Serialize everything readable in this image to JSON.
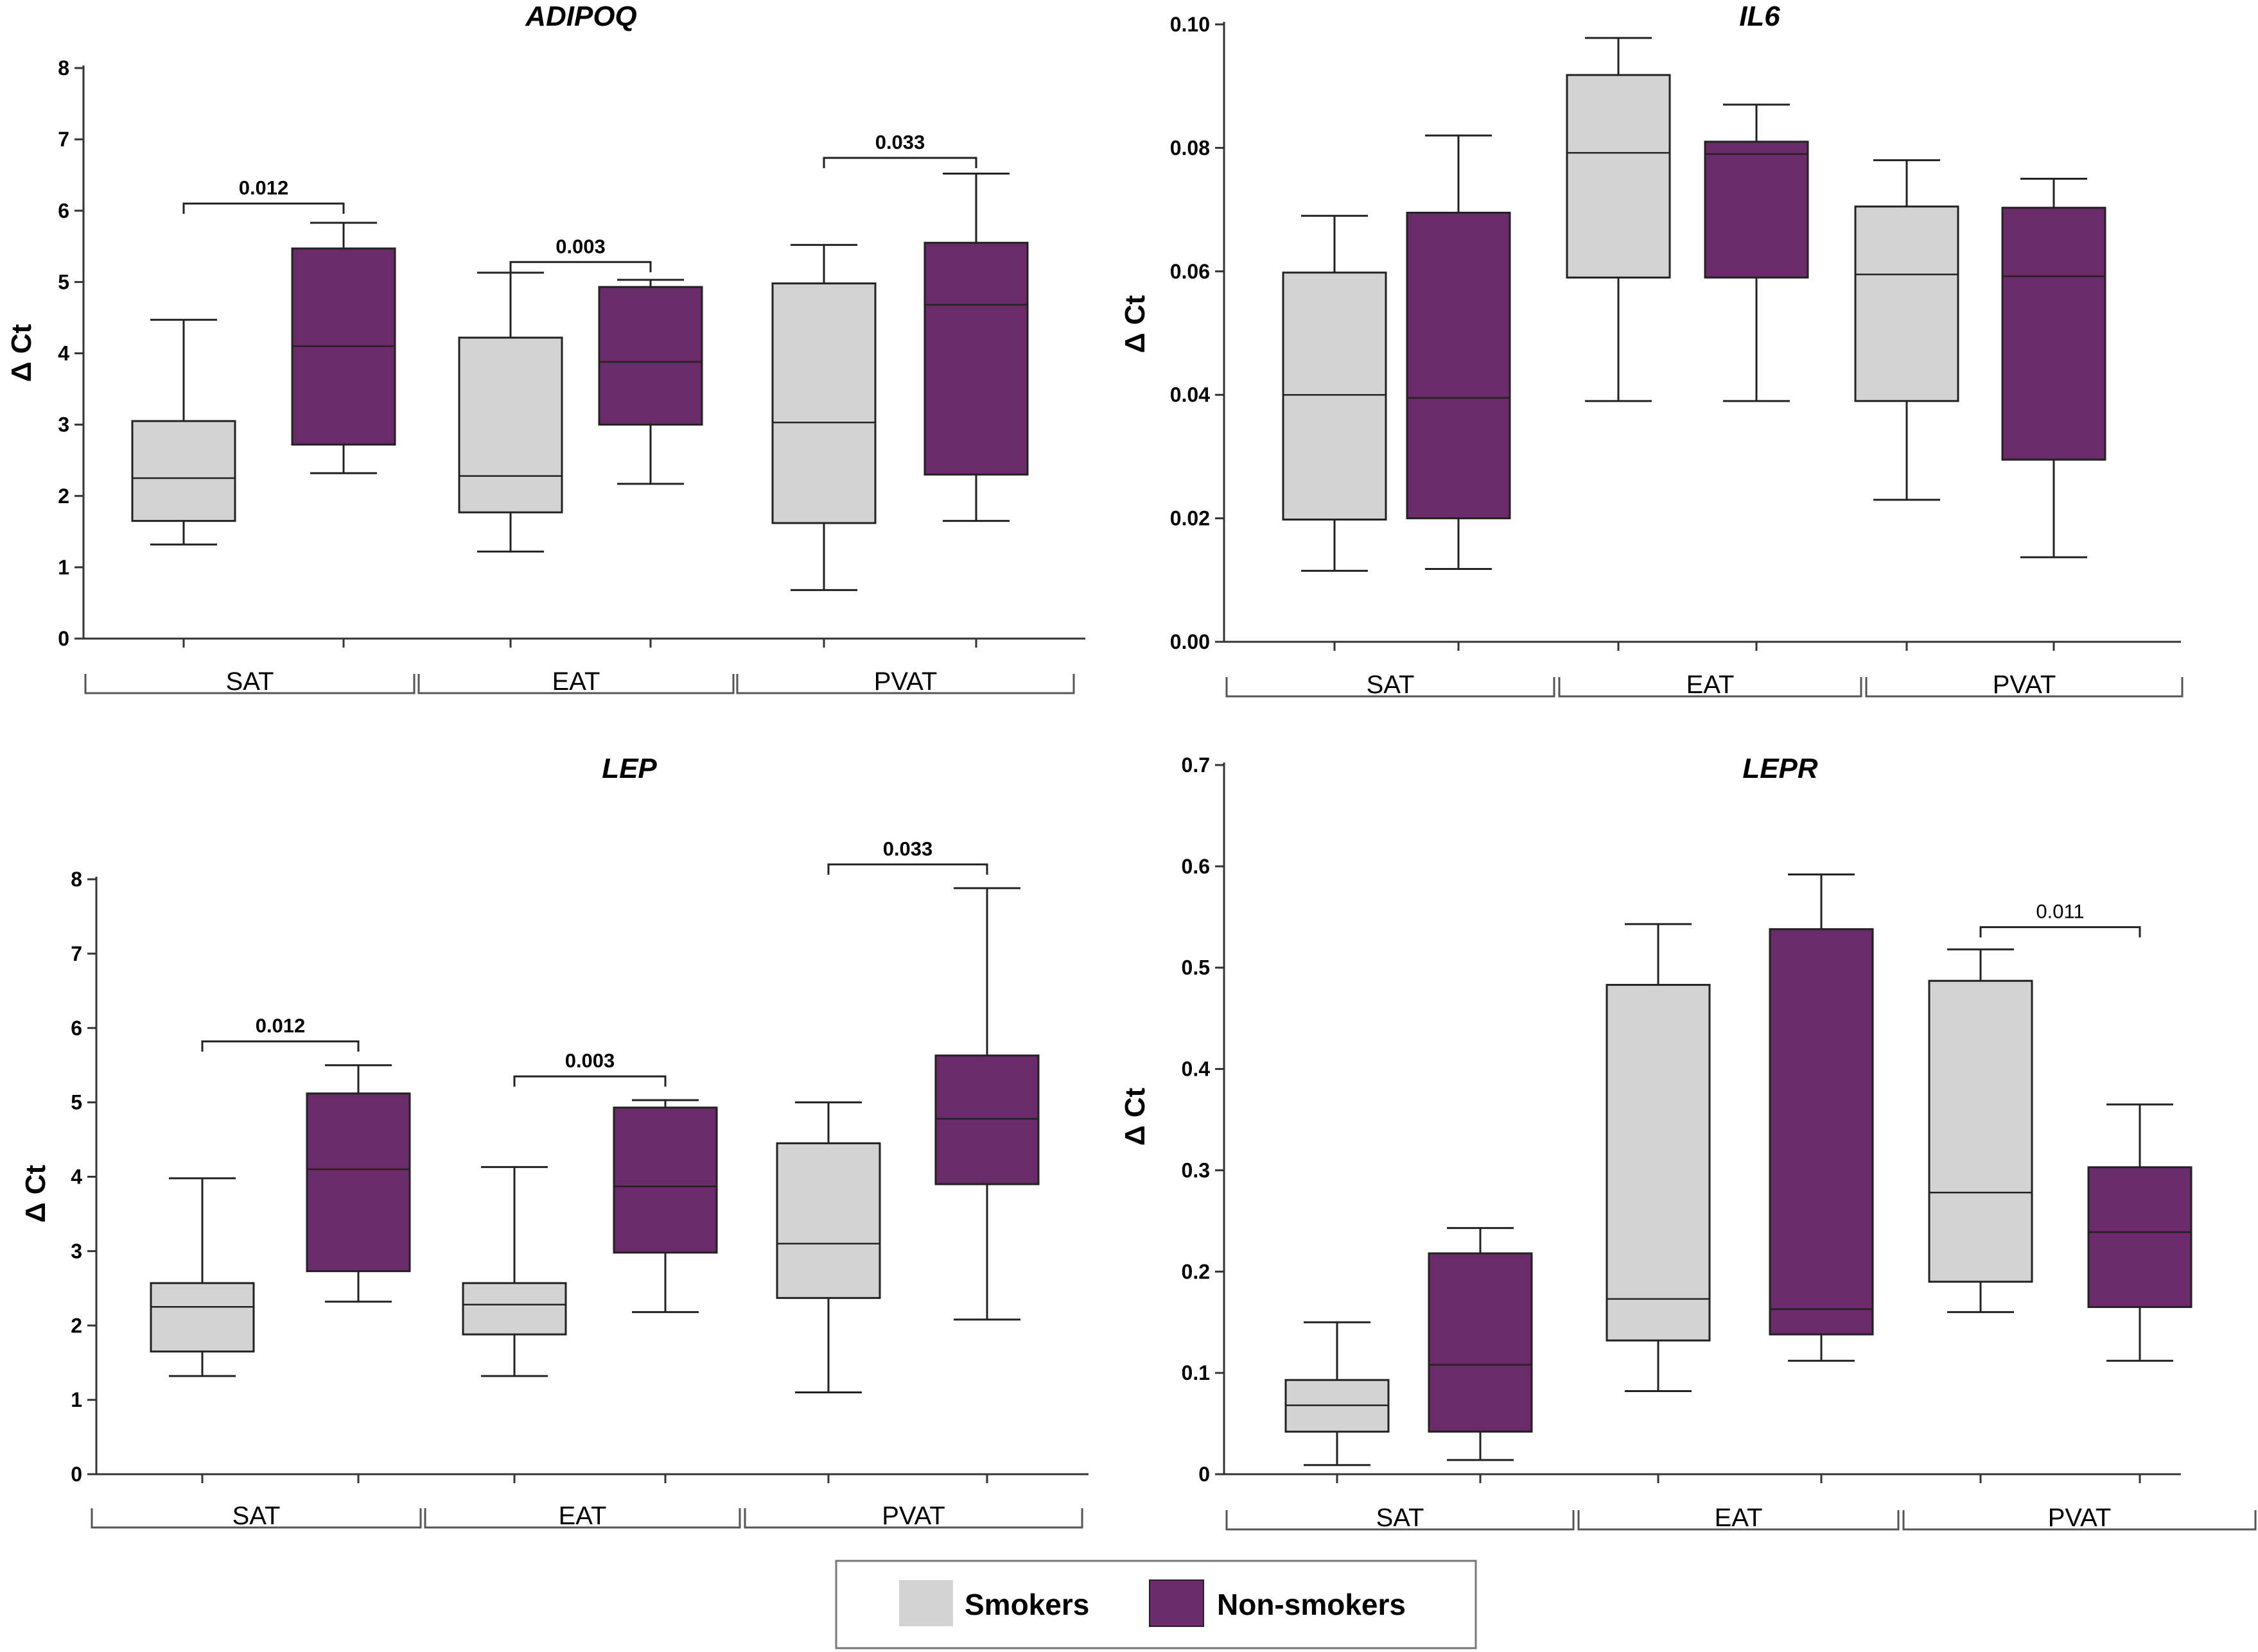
{
  "colors": {
    "smokers": "#d3d3d3",
    "nonsmokers": "#6b2a6a",
    "line": "#222222"
  },
  "legend": {
    "items": [
      {
        "label": "Smokers",
        "series": "smokers"
      },
      {
        "label": "Non-smokers",
        "series": "nonsmokers"
      }
    ]
  },
  "chart_data": [
    {
      "type": "box",
      "title": "ADIPOQ",
      "ylabel": "Δ Ct",
      "ylim": [
        0,
        8
      ],
      "yticks": [
        "0",
        "1",
        "2",
        "3",
        "4",
        "5",
        "6",
        "7",
        "8"
      ],
      "groups": [
        "SAT",
        "EAT",
        "PVAT"
      ],
      "series": [
        {
          "name": "Smokers",
          "boxes": [
            {
              "min": 1.32,
              "q1": 1.65,
              "median": 2.25,
              "q3": 3.05,
              "max": 4.47
            },
            {
              "min": 1.22,
              "q1": 1.77,
              "median": 2.28,
              "q3": 4.22,
              "max": 5.13
            },
            {
              "min": 0.68,
              "q1": 1.62,
              "median": 3.03,
              "q3": 4.98,
              "max": 5.52
            }
          ]
        },
        {
          "name": "Non-smokers",
          "boxes": [
            {
              "min": 2.32,
              "q1": 2.72,
              "median": 4.1,
              "q3": 5.47,
              "max": 5.83
            },
            {
              "min": 2.17,
              "q1": 3.0,
              "median": 3.88,
              "q3": 4.93,
              "max": 5.03
            },
            {
              "min": 1.65,
              "q1": 2.3,
              "median": 4.68,
              "q3": 5.55,
              "max": 6.52
            }
          ]
        }
      ],
      "annotations": [
        {
          "group": 0,
          "text": "0.012",
          "y": 6.1
        },
        {
          "group": 1,
          "text": "0.003",
          "y": 5.28
        },
        {
          "group": 2,
          "text": "0.033",
          "y": 6.74
        }
      ]
    },
    {
      "type": "box",
      "title": "IL6",
      "ylabel": "Δ Ct",
      "ylim": [
        0,
        0.1
      ],
      "yticks": [
        "0.00",
        "0.02",
        "0.04",
        "0.06",
        "0.08",
        "0.10"
      ],
      "groups": [
        "SAT",
        "EAT",
        "PVAT"
      ],
      "series": [
        {
          "name": "Smokers",
          "boxes": [
            {
              "min": 0.0115,
              "q1": 0.0198,
              "median": 0.04,
              "q3": 0.0598,
              "max": 0.069
            },
            {
              "min": 0.039,
              "q1": 0.059,
              "median": 0.0792,
              "q3": 0.0918,
              "max": 0.0978
            },
            {
              "min": 0.023,
              "q1": 0.039,
              "median": 0.0595,
              "q3": 0.0705,
              "max": 0.078
            }
          ]
        },
        {
          "name": "Non-smokers",
          "boxes": [
            {
              "min": 0.0118,
              "q1": 0.02,
              "median": 0.0395,
              "q3": 0.0695,
              "max": 0.082
            },
            {
              "min": 0.039,
              "q1": 0.059,
              "median": 0.079,
              "q3": 0.081,
              "max": 0.087
            },
            {
              "min": 0.0137,
              "q1": 0.0295,
              "median": 0.0592,
              "q3": 0.0703,
              "max": 0.075
            }
          ]
        }
      ],
      "annotations": []
    },
    {
      "type": "box",
      "title": "LEP",
      "ylabel": "Δ Ct",
      "ylim": [
        0,
        8
      ],
      "yticks": [
        "0",
        "1",
        "2",
        "3",
        "4",
        "5",
        "6",
        "7",
        "8"
      ],
      "groups": [
        "SAT",
        "EAT",
        "PVAT"
      ],
      "series": [
        {
          "name": "Smokers",
          "boxes": [
            {
              "min": 1.32,
              "q1": 1.65,
              "median": 2.25,
              "q3": 2.57,
              "max": 3.98
            },
            {
              "min": 1.32,
              "q1": 1.88,
              "median": 2.28,
              "q3": 2.57,
              "max": 4.13
            },
            {
              "min": 1.1,
              "q1": 2.37,
              "median": 3.1,
              "q3": 4.45,
              "max": 5.0
            }
          ]
        },
        {
          "name": "Non-smokers",
          "boxes": [
            {
              "min": 2.32,
              "q1": 2.73,
              "median": 4.1,
              "q3": 5.12,
              "max": 5.5
            },
            {
              "min": 2.18,
              "q1": 2.98,
              "median": 3.87,
              "q3": 4.93,
              "max": 5.03
            },
            {
              "min": 2.08,
              "q1": 3.9,
              "median": 4.78,
              "q3": 5.63,
              "max": 7.88
            }
          ]
        }
      ],
      "annotations": [
        {
          "group": 0,
          "text": "0.012",
          "y": 5.82
        },
        {
          "group": 1,
          "text": "0.003",
          "y": 5.35
        },
        {
          "group": 2,
          "text": "0.033",
          "y": 8.2
        }
      ]
    },
    {
      "type": "box",
      "title": "LEPR",
      "ylabel": "Δ Ct",
      "ylim": [
        0,
        0.7
      ],
      "yticks": [
        "0",
        "0.1",
        "0.2",
        "0.3",
        "0.4",
        "0.5",
        "0.6",
        "0.7"
      ],
      "groups": [
        "SAT",
        "EAT",
        "PVAT"
      ],
      "series": [
        {
          "name": "Smokers",
          "boxes": [
            {
              "min": 0.009,
              "q1": 0.042,
              "median": 0.068,
              "q3": 0.093,
              "max": 0.15
            },
            {
              "min": 0.082,
              "q1": 0.132,
              "median": 0.173,
              "q3": 0.483,
              "max": 0.543
            },
            {
              "min": 0.16,
              "q1": 0.19,
              "median": 0.278,
              "q3": 0.487,
              "max": 0.518
            }
          ]
        },
        {
          "name": "Non-smokers",
          "boxes": [
            {
              "min": 0.014,
              "q1": 0.042,
              "median": 0.108,
              "q3": 0.218,
              "max": 0.243
            },
            {
              "min": 0.112,
              "q1": 0.138,
              "median": 0.163,
              "q3": 0.538,
              "max": 0.592
            },
            {
              "min": 0.112,
              "q1": 0.165,
              "median": 0.239,
              "q3": 0.303,
              "max": 0.365
            }
          ]
        }
      ],
      "annotations": [
        {
          "group": 2,
          "text": "0.011",
          "y": 0.54,
          "bold": false
        }
      ]
    }
  ]
}
